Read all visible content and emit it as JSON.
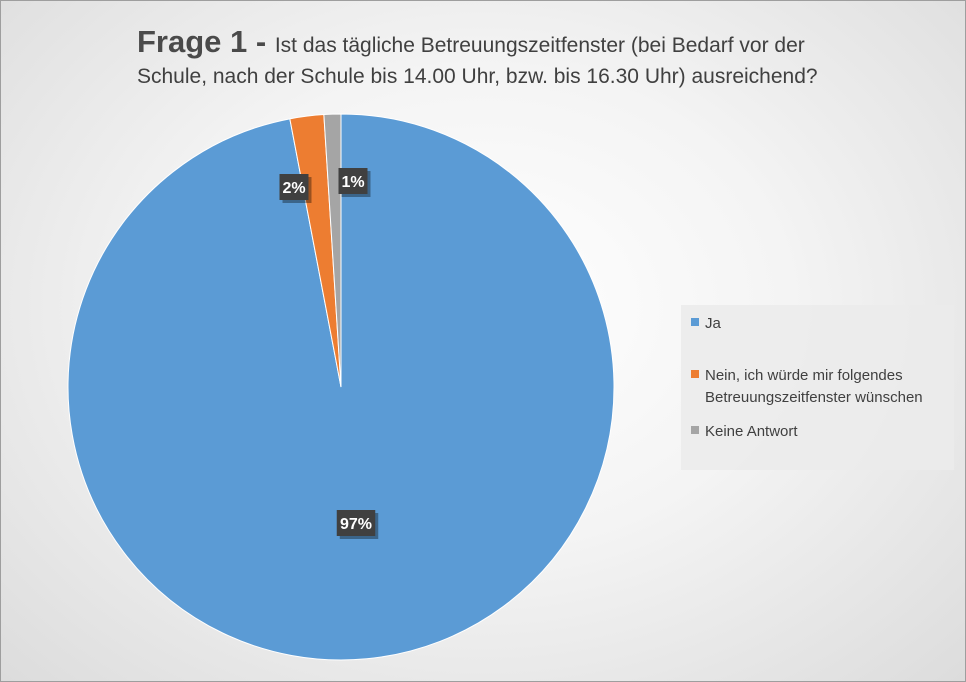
{
  "title": {
    "main": "Frage 1 - ",
    "rest_line1": "Ist das tägliche Betreuungszeitfenster (bei Bedarf vor der",
    "rest_line2": "Schule, nach der Schule bis 14.00 Uhr, bzw. bis 16.30 Uhr) ausreichend?"
  },
  "chart_data": {
    "type": "pie",
    "title": "Frage 1 - Ist das tägliche Betreuungszeitfenster (bei Bedarf vor der Schule, nach der Schule bis 14.00 Uhr, bzw. bis 16.30 Uhr) ausreichend?",
    "categories": [
      "Ja",
      "Nein, ich würde mir folgendes Betreuungszeitfenster wünschen",
      "Keine Antwort"
    ],
    "values": [
      97,
      2,
      1
    ],
    "labels": [
      "97%",
      "2%",
      "1%"
    ],
    "colors": [
      "#5B9BD5",
      "#ED7D31",
      "#A5A5A5"
    ],
    "legend": "right",
    "start_angle_deg": 0,
    "direction": "clockwise"
  },
  "legend": {
    "items": [
      {
        "label": "Ja",
        "color": "#5B9BD5"
      },
      {
        "label": "Nein, ich würde mir folgendes Betreuungszeitfenster wünschen",
        "color": "#ED7D31"
      },
      {
        "label": "Keine Antwort",
        "color": "#A5A5A5"
      }
    ]
  }
}
